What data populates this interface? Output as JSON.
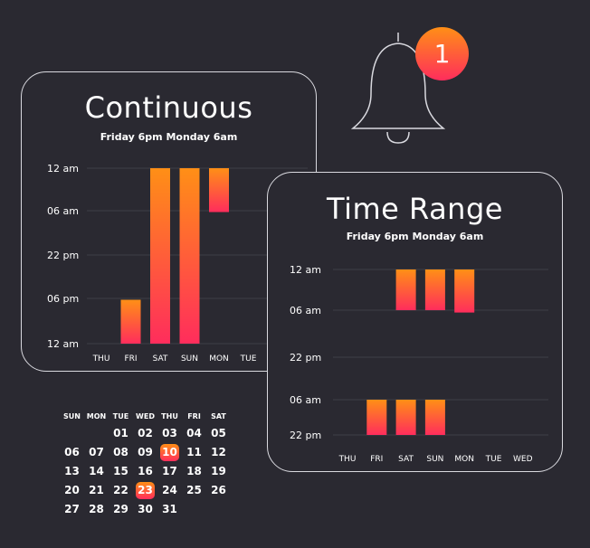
{
  "notification": {
    "badge_text": "1"
  },
  "calendar": {
    "weekdays": [
      "SUN",
      "MON",
      "TUE",
      "WED",
      "THU",
      "FRI",
      "SAT"
    ],
    "weeks": [
      [
        "",
        "",
        "01",
        "02",
        "03",
        "04",
        "05"
      ],
      [
        "06",
        "07",
        "08",
        "09",
        "10",
        "11",
        "12"
      ],
      [
        "13",
        "14",
        "15",
        "16",
        "17",
        "18",
        "19"
      ],
      [
        "20",
        "21",
        "22",
        "23",
        "24",
        "25",
        "26"
      ],
      [
        "27",
        "28",
        "29",
        "30",
        "31",
        "",
        ""
      ]
    ],
    "highlighted": [
      "10",
      "23"
    ]
  },
  "colors": {
    "gradient_top": "#ff8f16",
    "gradient_bottom": "#ff2d5c",
    "background": "#2a2931",
    "border": "#d9d9df"
  },
  "chart_data": [
    {
      "type": "bar",
      "title": "Continuous",
      "subtitle": "Friday 6pm Monday 6am",
      "ylabels": [
        "12 am",
        "06 am",
        "22 pm",
        "06 pm",
        "12 am"
      ],
      "categories": [
        "THU",
        "FRI",
        "SAT",
        "SUN",
        "MON",
        "TUE"
      ],
      "ranges": [
        null,
        [
          3,
          4
        ],
        [
          0,
          4
        ],
        [
          0,
          4
        ],
        [
          0,
          1
        ],
        null
      ]
    },
    {
      "type": "bar",
      "title": "Time Range",
      "subtitle": "Friday 6pm Monday 6am",
      "ylabels": [
        "12 am",
        "06 am",
        "22 pm",
        "06 am",
        "22 pm"
      ],
      "categories": [
        "THU",
        "FRI",
        "SAT",
        "SUN",
        "MON",
        "TUE",
        "WED"
      ],
      "ranges": [
        null,
        [
          3,
          4
        ],
        [
          3,
          4
        ],
        [
          3,
          4
        ],
        null,
        null,
        null
      ],
      "ranges_upper": [
        null,
        null,
        [
          0,
          1
        ],
        [
          0,
          1
        ],
        [
          0,
          1.05
        ],
        null,
        null
      ]
    }
  ]
}
